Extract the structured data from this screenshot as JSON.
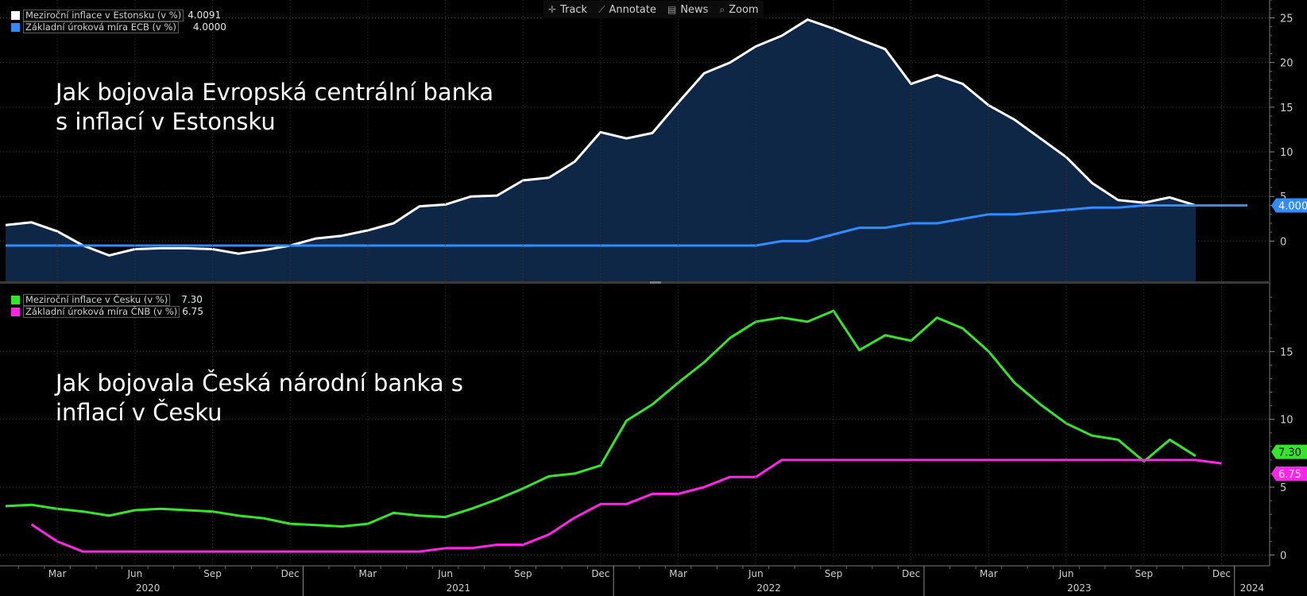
{
  "toolbar": {
    "track_label": "Track",
    "annotate_label": "Annotate",
    "news_label": "News",
    "zoom_label": "Zoom"
  },
  "top_panel": {
    "title_line1": "Jak bojovala Evropská centrální banka",
    "title_line2": "s inflací v Estonsku",
    "legend": [
      {
        "name": "Meziroční inflace v Estonsku (v %)",
        "value": "4.0091",
        "color": "#ffffff"
      },
      {
        "name": "Základní úroková míra ECB (v %)",
        "value": "4.0000",
        "color": "#2f8cff"
      }
    ],
    "axis_tag": "4.0000"
  },
  "bottom_panel": {
    "title_line1": "Jak bojovala Česká národní banka s",
    "title_line2": "inflací v Česku",
    "legend": [
      {
        "name": "Meziroční inflace v Česku (v %)",
        "value": "7.30",
        "color": "#35e52a"
      },
      {
        "name": "Základní úroková míra ČNB (v %)",
        "value": "6.75",
        "color": "#ff24e8"
      }
    ],
    "axis_tag_green": "7.30",
    "axis_tag_magenta": "6.75"
  },
  "chart_data": [
    {
      "type": "line",
      "panel": "top",
      "x": [
        "2020-01",
        "2020-02",
        "2020-03",
        "2020-04",
        "2020-05",
        "2020-06",
        "2020-07",
        "2020-08",
        "2020-09",
        "2020-10",
        "2020-11",
        "2020-12",
        "2021-01",
        "2021-02",
        "2021-03",
        "2021-04",
        "2021-05",
        "2021-06",
        "2021-07",
        "2021-08",
        "2021-09",
        "2021-10",
        "2021-11",
        "2021-12",
        "2022-01",
        "2022-02",
        "2022-03",
        "2022-04",
        "2022-05",
        "2022-06",
        "2022-07",
        "2022-08",
        "2022-09",
        "2022-10",
        "2022-11",
        "2022-12",
        "2023-01",
        "2023-02",
        "2023-03",
        "2023-04",
        "2023-05",
        "2023-06",
        "2023-07",
        "2023-08",
        "2023-09",
        "2023-10",
        "2023-11",
        "2023-12",
        "2024-01"
      ],
      "series": [
        {
          "name": "Meziroční inflace v Estonsku (v %)",
          "color": "#ffffff",
          "area": true,
          "values": [
            1.8,
            2.1,
            1.1,
            -0.5,
            -1.6,
            -0.9,
            -0.8,
            -0.8,
            -0.9,
            -1.4,
            -1.0,
            -0.5,
            0.3,
            0.6,
            1.2,
            2.0,
            3.9,
            4.1,
            5.0,
            5.1,
            6.8,
            7.1,
            8.9,
            12.2,
            11.5,
            12.1,
            15.5,
            18.8,
            20.0,
            21.8,
            23.0,
            24.8,
            23.8,
            22.6,
            21.5,
            17.6,
            18.6,
            17.6,
            15.2,
            13.6,
            11.5,
            9.4,
            6.5,
            4.6,
            4.3,
            4.9,
            4.0,
            null,
            null
          ]
        },
        {
          "name": "Základní úroková míra ECB (v %)",
          "color": "#2f8cff",
          "values": [
            -0.5,
            -0.5,
            -0.5,
            -0.5,
            -0.5,
            -0.5,
            -0.5,
            -0.5,
            -0.5,
            -0.5,
            -0.5,
            -0.5,
            -0.5,
            -0.5,
            -0.5,
            -0.5,
            -0.5,
            -0.5,
            -0.5,
            -0.5,
            -0.5,
            -0.5,
            -0.5,
            -0.5,
            -0.5,
            -0.5,
            -0.5,
            -0.5,
            -0.5,
            -0.5,
            0.0,
            0.0,
            0.75,
            1.5,
            1.5,
            2.0,
            2.0,
            2.5,
            3.0,
            3.0,
            3.25,
            3.5,
            3.75,
            3.75,
            4.0,
            4.0,
            4.0,
            4.0,
            4.0
          ]
        }
      ],
      "ylim": [
        -4.5,
        27
      ],
      "yticks": [
        0,
        5,
        10,
        15,
        20,
        25
      ],
      "grid": true
    },
    {
      "type": "line",
      "panel": "bottom",
      "x": [
        "2020-01",
        "2020-02",
        "2020-03",
        "2020-04",
        "2020-05",
        "2020-06",
        "2020-07",
        "2020-08",
        "2020-09",
        "2020-10",
        "2020-11",
        "2020-12",
        "2021-01",
        "2021-02",
        "2021-03",
        "2021-04",
        "2021-05",
        "2021-06",
        "2021-07",
        "2021-08",
        "2021-09",
        "2021-10",
        "2021-11",
        "2021-12",
        "2022-01",
        "2022-02",
        "2022-03",
        "2022-04",
        "2022-05",
        "2022-06",
        "2022-07",
        "2022-08",
        "2022-09",
        "2022-10",
        "2022-11",
        "2022-12",
        "2023-01",
        "2023-02",
        "2023-03",
        "2023-04",
        "2023-05",
        "2023-06",
        "2023-07",
        "2023-08",
        "2023-09",
        "2023-10",
        "2023-11",
        "2023-12",
        "2024-01"
      ],
      "series": [
        {
          "name": "Meziroční inflace v Česku (v %)",
          "color": "#35e52a",
          "values": [
            3.6,
            3.7,
            3.4,
            3.2,
            2.9,
            3.3,
            3.4,
            3.3,
            3.2,
            2.9,
            2.7,
            2.3,
            2.2,
            2.1,
            2.3,
            3.1,
            2.9,
            2.8,
            3.4,
            4.1,
            4.9,
            5.8,
            6.0,
            6.6,
            9.9,
            11.1,
            12.7,
            14.2,
            16.0,
            17.2,
            17.5,
            17.2,
            18.0,
            15.1,
            16.2,
            15.8,
            17.5,
            16.7,
            15.0,
            12.7,
            11.1,
            9.7,
            8.8,
            8.5,
            6.9,
            8.5,
            7.3,
            null,
            null
          ]
        },
        {
          "name": "Základní úroková míra ČNB (v %)",
          "color": "#ff24e8",
          "values": [
            null,
            2.25,
            1.0,
            0.25,
            0.25,
            0.25,
            0.25,
            0.25,
            0.25,
            0.25,
            0.25,
            0.25,
            0.25,
            0.25,
            0.25,
            0.25,
            0.25,
            0.5,
            0.5,
            0.75,
            0.75,
            1.5,
            2.75,
            3.75,
            3.75,
            4.5,
            4.5,
            5.0,
            5.75,
            5.75,
            7.0,
            7.0,
            7.0,
            7.0,
            7.0,
            7.0,
            7.0,
            7.0,
            7.0,
            7.0,
            7.0,
            7.0,
            7.0,
            7.0,
            7.0,
            7.0,
            7.0,
            6.75,
            null
          ]
        }
      ],
      "ylim": [
        -0.8,
        20
      ],
      "yticks": [
        0,
        5,
        10,
        15
      ],
      "grid": true
    }
  ],
  "x_axis": {
    "month_ticks": [
      {
        "label": "Mar",
        "date": "2020-03"
      },
      {
        "label": "Jun",
        "date": "2020-06"
      },
      {
        "label": "Sep",
        "date": "2020-09"
      },
      {
        "label": "Dec",
        "date": "2020-12"
      },
      {
        "label": "Mar",
        "date": "2021-03"
      },
      {
        "label": "Jun",
        "date": "2021-06"
      },
      {
        "label": "Sep",
        "date": "2021-09"
      },
      {
        "label": "Dec",
        "date": "2021-12"
      },
      {
        "label": "Mar",
        "date": "2022-03"
      },
      {
        "label": "Jun",
        "date": "2022-06"
      },
      {
        "label": "Sep",
        "date": "2022-09"
      },
      {
        "label": "Dec",
        "date": "2022-12"
      },
      {
        "label": "Mar",
        "date": "2023-03"
      },
      {
        "label": "Jun",
        "date": "2023-06"
      },
      {
        "label": "Sep",
        "date": "2023-09"
      },
      {
        "label": "Dec",
        "date": "2023-12"
      }
    ],
    "year_ticks": [
      {
        "label": "2020",
        "year": 2020
      },
      {
        "label": "2021",
        "year": 2021
      },
      {
        "label": "2022",
        "year": 2022
      },
      {
        "label": "2023",
        "year": 2023
      },
      {
        "label": "2024",
        "year": 2024
      }
    ]
  }
}
